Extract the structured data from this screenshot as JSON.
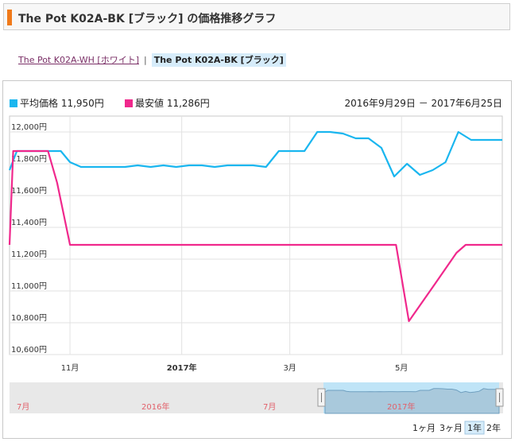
{
  "header": {
    "title": "The Pot K02A-BK [ブラック] の価格推移グラフ"
  },
  "variants": {
    "other_label": "The Pot K02A-WH [ホワイト]",
    "separator": "|",
    "current_label": "The Pot K02A-BK [ブラック]"
  },
  "legend": {
    "avg_label": "平均価格 11,950円",
    "min_label": "最安値 11,286円",
    "date_range": "2016年9月29日 － 2017年6月25日"
  },
  "colors": {
    "avg": "#1ab6ef",
    "min": "#f0288c",
    "accent": "#f07a1a"
  },
  "navigator": {
    "labels": [
      "7月",
      "2016年",
      "7月",
      "2017年"
    ]
  },
  "range_buttons": [
    "1ヶ月",
    "3ヶ月",
    "1年",
    "2年"
  ],
  "range_selected": "1年",
  "chart_data": {
    "type": "line",
    "ylim": [
      10600,
      12100
    ],
    "yticks": [
      10600,
      10800,
      11000,
      11200,
      11400,
      11600,
      11800,
      12000
    ],
    "ytick_labels": [
      "10,600円",
      "10,800円",
      "11,000円",
      "11,200円",
      "11,400円",
      "11,600円",
      "11,800円",
      "12,000円"
    ],
    "xlim": [
      "2016-09-29",
      "2017-06-25"
    ],
    "xticks": [
      {
        "date": "2016-11-01",
        "label": "11月",
        "bold": false
      },
      {
        "date": "2017-01-01",
        "label": "2017年",
        "bold": true
      },
      {
        "date": "2017-03-01",
        "label": "3月",
        "bold": false
      },
      {
        "date": "2017-05-01",
        "label": "5月",
        "bold": false
      }
    ],
    "grid": true,
    "legend_position": "top-left",
    "series": [
      {
        "name": "平均価格",
        "points": [
          [
            "2016-09-29",
            11760
          ],
          [
            "2016-10-03",
            11880
          ],
          [
            "2016-10-20",
            11880
          ],
          [
            "2016-10-27",
            11880
          ],
          [
            "2016-11-01",
            11810
          ],
          [
            "2016-11-07",
            11780
          ],
          [
            "2016-11-20",
            11780
          ],
          [
            "2016-12-01",
            11780
          ],
          [
            "2016-12-08",
            11790
          ],
          [
            "2016-12-15",
            11780
          ],
          [
            "2016-12-22",
            11790
          ],
          [
            "2016-12-29",
            11780
          ],
          [
            "2017-01-05",
            11790
          ],
          [
            "2017-01-12",
            11790
          ],
          [
            "2017-01-19",
            11780
          ],
          [
            "2017-01-26",
            11790
          ],
          [
            "2017-02-02",
            11790
          ],
          [
            "2017-02-09",
            11790
          ],
          [
            "2017-02-16",
            11780
          ],
          [
            "2017-02-23",
            11880
          ],
          [
            "2017-03-02",
            11880
          ],
          [
            "2017-03-09",
            11880
          ],
          [
            "2017-03-16",
            12000
          ],
          [
            "2017-03-23",
            12000
          ],
          [
            "2017-03-30",
            11990
          ],
          [
            "2017-04-06",
            11960
          ],
          [
            "2017-04-13",
            11960
          ],
          [
            "2017-04-20",
            11900
          ],
          [
            "2017-04-27",
            11720
          ],
          [
            "2017-05-04",
            11800
          ],
          [
            "2017-05-11",
            11730
          ],
          [
            "2017-05-18",
            11760
          ],
          [
            "2017-05-25",
            11810
          ],
          [
            "2017-06-01",
            12000
          ],
          [
            "2017-06-08",
            11950
          ],
          [
            "2017-06-15",
            11950
          ],
          [
            "2017-06-25",
            11950
          ]
        ]
      },
      {
        "name": "最安値",
        "points": [
          [
            "2016-09-29",
            11290
          ],
          [
            "2016-10-01",
            11880
          ],
          [
            "2016-10-20",
            11880
          ],
          [
            "2016-10-25",
            11680
          ],
          [
            "2016-11-01",
            11290
          ],
          [
            "2016-12-01",
            11290
          ],
          [
            "2017-01-01",
            11290
          ],
          [
            "2017-02-01",
            11290
          ],
          [
            "2017-03-01",
            11290
          ],
          [
            "2017-04-01",
            11290
          ],
          [
            "2017-04-28",
            11290
          ],
          [
            "2017-05-05",
            10810
          ],
          [
            "2017-05-19",
            11040
          ],
          [
            "2017-05-31",
            11240
          ],
          [
            "2017-06-05",
            11290
          ],
          [
            "2017-06-25",
            11290
          ]
        ]
      }
    ]
  }
}
